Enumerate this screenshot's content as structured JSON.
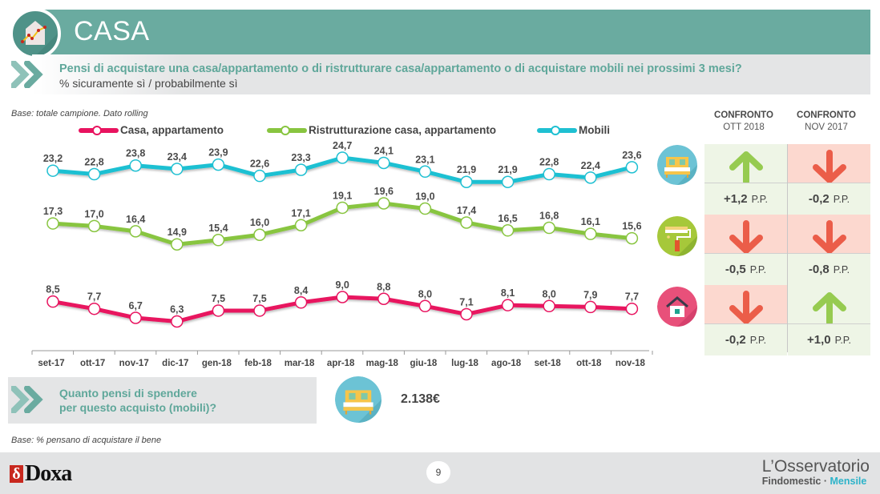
{
  "header": {
    "title": "CASA",
    "icon": "house-chart-icon"
  },
  "question": {
    "title": "Pensi di acquistare una casa/appartamento o di ristrutturare casa/appartamento o di acquistare mobili nei prossimi 3 mesi?",
    "subtitle": "% sicuramente sì / probabilmente sì"
  },
  "base_note": "Base: totale campione. Dato rolling",
  "chart_data": {
    "type": "line",
    "title": "",
    "xlabel": "",
    "ylabel": "",
    "ylim": [
      0,
      30
    ],
    "grid": false,
    "legend": "top",
    "x": [
      "set-17",
      "ott-17",
      "nov-17",
      "dic-17",
      "gen-18",
      "feb-18",
      "mar-18",
      "apr-18",
      "mag-18",
      "giu-18",
      "lug-18",
      "ago-18",
      "set-18",
      "ott-18",
      "nov-18"
    ],
    "series": [
      {
        "name": "Casa, appartamento",
        "color": "#e8135f",
        "values": [
          8.5,
          7.7,
          6.7,
          6.3,
          7.5,
          7.5,
          8.4,
          9.0,
          8.8,
          8.0,
          7.1,
          8.1,
          8.0,
          7.9,
          7.7
        ],
        "labels": [
          "8,5",
          "7,7",
          "6,7",
          "6,3",
          "7,5",
          "7,5",
          "8,4",
          "9,0",
          "8,8",
          "8,0",
          "7,1",
          "8,1",
          "8,0",
          "7,9",
          "7,7"
        ]
      },
      {
        "name": "Ristrutturazione casa, appartamento",
        "color": "#88c540",
        "values": [
          17.3,
          17.0,
          16.4,
          14.9,
          15.4,
          16.0,
          17.1,
          19.1,
          19.6,
          19.0,
          17.4,
          16.5,
          16.8,
          16.1,
          15.6
        ],
        "labels": [
          "17,3",
          "17,0",
          "16,4",
          "14,9",
          "15,4",
          "16,0",
          "17,1",
          "19,1",
          "19,6",
          "19,0",
          "17,4",
          "16,5",
          "16,8",
          "16,1",
          "15,6"
        ]
      },
      {
        "name": "Mobili",
        "color": "#1fc0d2",
        "values": [
          23.2,
          22.8,
          23.8,
          23.4,
          23.9,
          22.6,
          23.3,
          24.7,
          24.1,
          23.1,
          21.9,
          21.9,
          22.8,
          22.4,
          23.6
        ],
        "labels": [
          "23,2",
          "22,8",
          "23,8",
          "23,4",
          "23,9",
          "22,6",
          "23,3",
          "24,7",
          "24,1",
          "23,1",
          "21,9",
          "21,9",
          "22,8",
          "22,4",
          "23,6"
        ]
      }
    ]
  },
  "comparison": {
    "headers": [
      {
        "line1": "CONFRONTO",
        "line2": "OTT 2018"
      },
      {
        "line1": "CONFRONTO",
        "line2": "NOV 2017"
      }
    ],
    "unit": "P.P.",
    "rows": [
      {
        "name": "Mobili",
        "icon": "bed-icon",
        "cells": [
          {
            "direction": "up",
            "value": "+1,2"
          },
          {
            "direction": "down",
            "value": "-0,2"
          }
        ]
      },
      {
        "name": "Ristrutturazione",
        "icon": "paint-roller-icon",
        "cells": [
          {
            "direction": "down",
            "value": "-0,5"
          },
          {
            "direction": "down",
            "value": "-0,8"
          }
        ]
      },
      {
        "name": "Casa",
        "icon": "house-icon",
        "cells": [
          {
            "direction": "down",
            "value": "-0,2"
          },
          {
            "direction": "up",
            "value": "+1,0"
          }
        ]
      }
    ],
    "colors": {
      "up": "#8cc63f",
      "down": "#e9503a"
    }
  },
  "spend": {
    "question_line1": "Quanto pensi di spendere",
    "question_line2": "per questo acquisto (mobili)?",
    "value": "2.138€"
  },
  "base_note2": "Base: % pensano di acquistare il bene",
  "footer": {
    "brand_left_mark": "δ",
    "brand_left": "Doxa",
    "page_number": "9",
    "brand_right_line1": "L’Osservatorio",
    "brand_right_line2a": "Findomestic · ",
    "brand_right_line2b": "Mensile"
  }
}
